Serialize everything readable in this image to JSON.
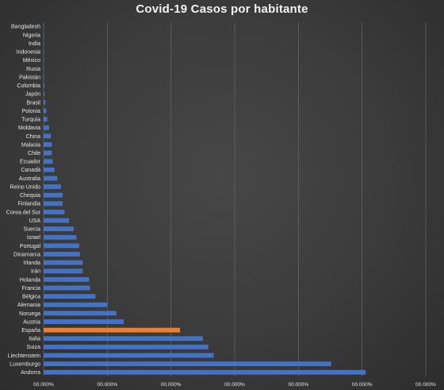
{
  "chart_data": {
    "type": "bar",
    "orientation": "horizontal",
    "title": "Covid-19  Casos por habitante",
    "categories": [
      "Andorra",
      "Luxemburgo",
      "Liechtenstein",
      "Suiza",
      "Italia",
      "España",
      "Austria",
      "Noruega",
      "Alemania",
      "Bélgica",
      "Francia",
      "Holanda",
      "Irán",
      "Irlanda",
      "Dinamarca",
      "Portugal",
      "Israel",
      "Suecia",
      "USA",
      "Corea del Sur",
      "Finlandia",
      "Chequia",
      "Reino Unido",
      "Australia",
      "Canadá",
      "Ecuador",
      "Chile",
      "Malasia",
      "China",
      "Moldavia",
      "Turquía",
      "Polonia",
      "Brasil",
      "Japón",
      "Colombia",
      "Pakistán",
      "Rusia",
      "México",
      "Indonesia",
      "India",
      "Nigeria",
      "Bangladesh"
    ],
    "values": [
      0.00354,
      0.00316,
      0.00187,
      0.00181,
      0.00175,
      0.0015,
      0.00088,
      0.0008,
      0.0007,
      0.00057,
      0.00051,
      0.0005,
      0.00043,
      0.00043,
      0.0004,
      0.00039,
      0.00036,
      0.00033,
      0.00028,
      0.00023,
      0.00021,
      0.00021,
      0.00019,
      0.00015,
      0.00012,
      0.0001,
      9e-05,
      9e-05,
      8e-05,
      6e-05,
      4e-05,
      3e-05,
      2e-05,
      1e-05,
      1e-05,
      6e-06,
      4e-06,
      3e-06,
      3e-06,
      1e-06,
      1e-06,
      1e-06
    ],
    "highlight": "España",
    "colors": {
      "bar": "#4472c4",
      "highlight": "#ed7d31",
      "grid": "#6e6e6e",
      "text": "#e6e6e6"
    },
    "xlim": [
      0,
      0.0042
    ],
    "xticks": [
      "00.000%",
      "00.000%",
      "00.000%",
      "00.000%",
      "00.000%",
      "00.000%",
      "00.000%"
    ],
    "grid": true,
    "legend": "none"
  }
}
